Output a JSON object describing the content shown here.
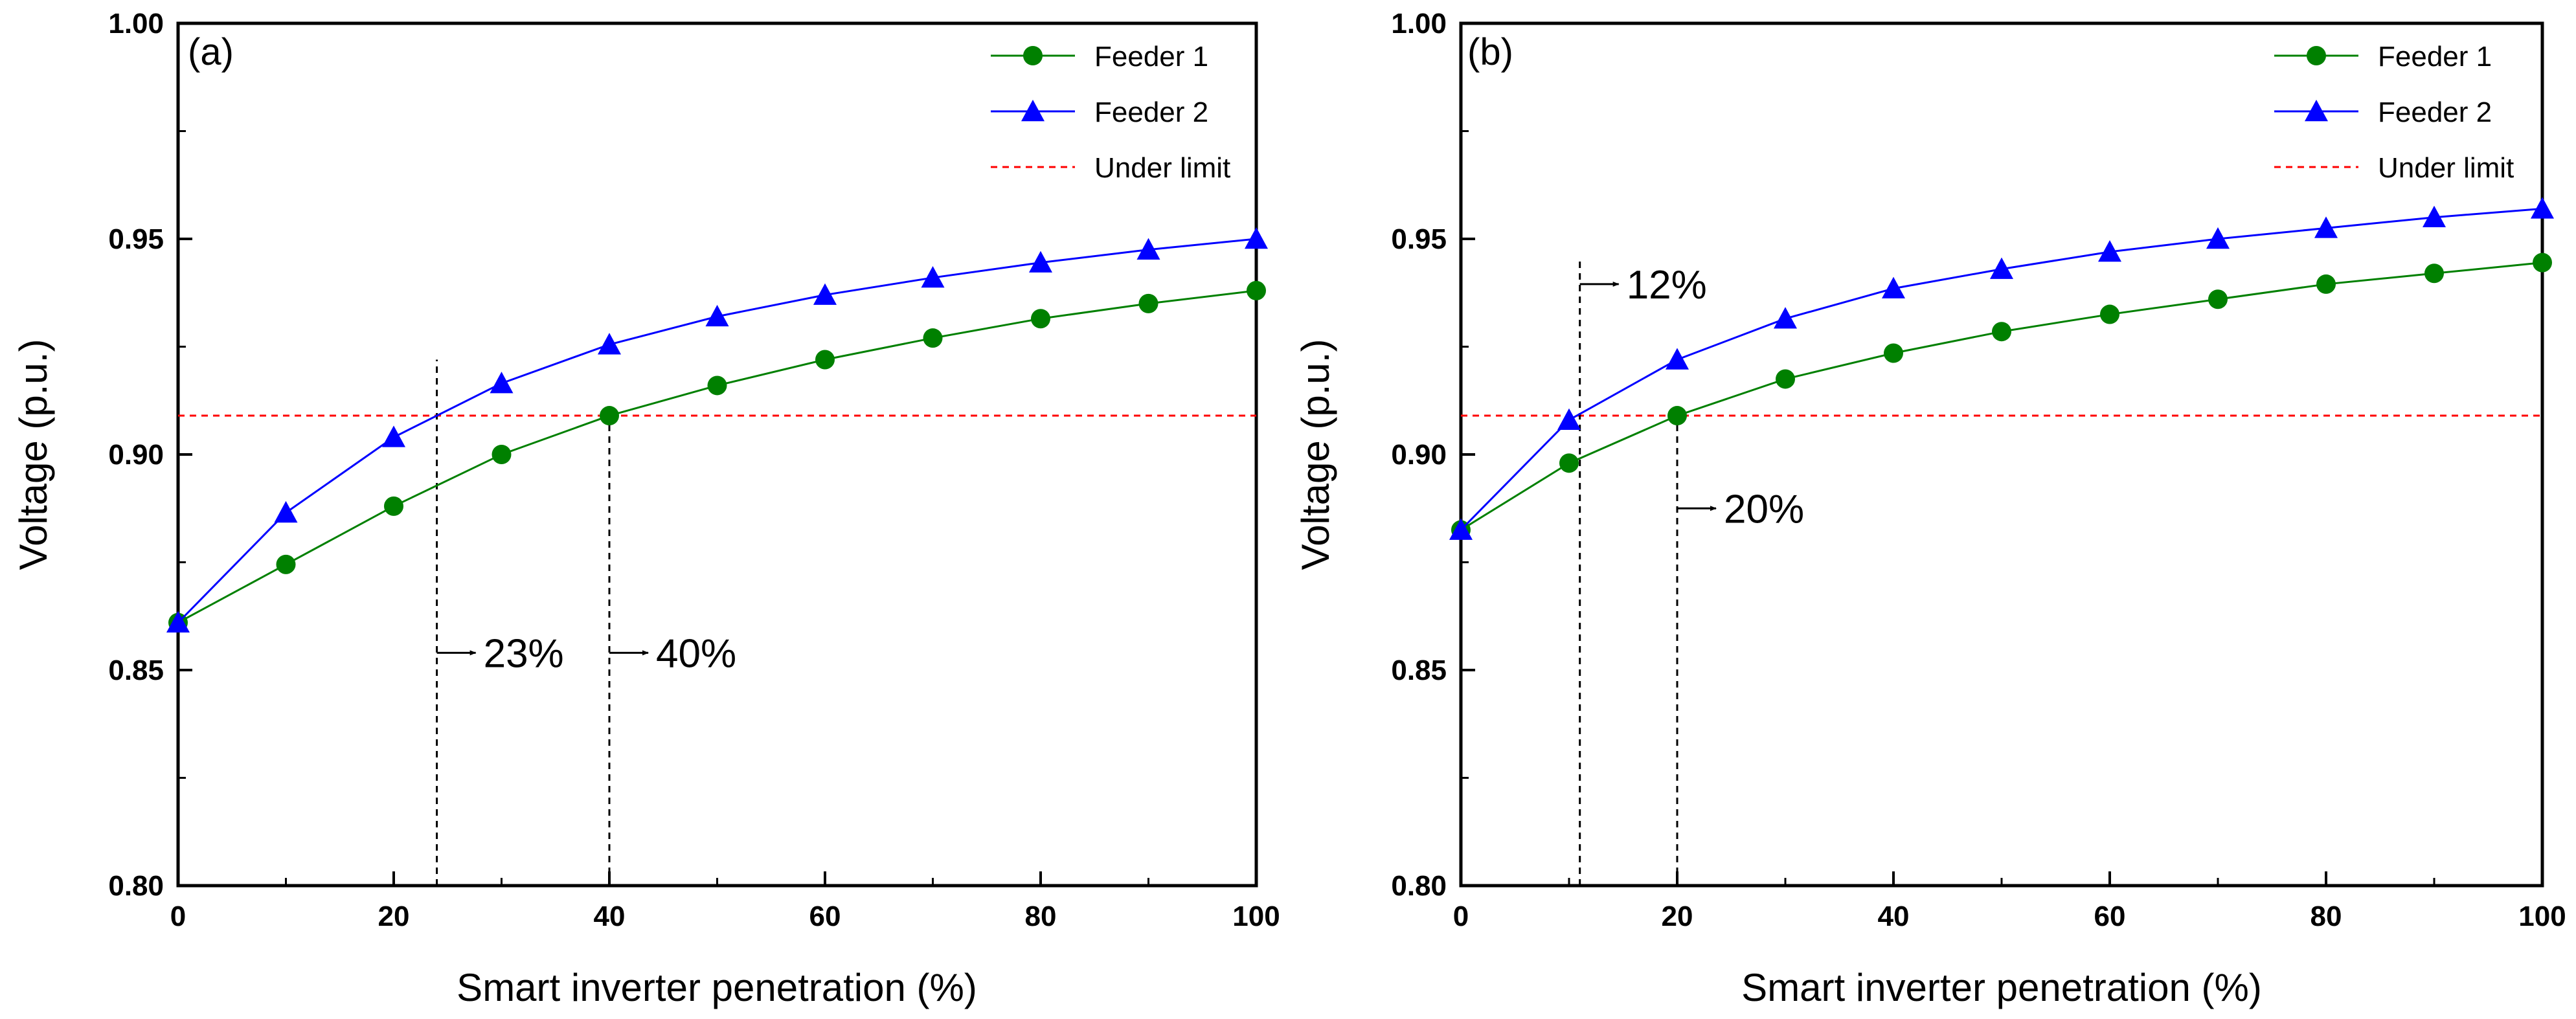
{
  "chart_data": [
    {
      "type": "line",
      "panel_label": "(a)",
      "xlabel": "Smart inverter penetration (%)",
      "ylabel": "Voltage (p.u.)",
      "xlim": [
        0,
        100
      ],
      "ylim": [
        0.8,
        1.0
      ],
      "x_ticks": [
        "0",
        "20",
        "40",
        "60",
        "80",
        "100"
      ],
      "y_ticks": [
        "0.80",
        "0.85",
        "0.90",
        "0.95",
        "1.00"
      ],
      "x": [
        0,
        10,
        20,
        30,
        40,
        50,
        60,
        70,
        80,
        90,
        100
      ],
      "series": [
        {
          "name": "Feeder 1",
          "color": "#008000",
          "marker": "circle",
          "values": [
            0.861,
            0.8745,
            0.888,
            0.9,
            0.909,
            0.916,
            0.922,
            0.927,
            0.9315,
            0.935,
            0.938
          ]
        },
        {
          "name": "Feeder 2",
          "color": "#0000ff",
          "marker": "triangle",
          "values": [
            0.861,
            0.8865,
            0.904,
            0.9165,
            0.9255,
            0.932,
            0.937,
            0.941,
            0.9445,
            0.9475,
            0.95
          ]
        }
      ],
      "reference_line": {
        "name": "Under limit",
        "y": 0.909,
        "color": "#ff0000"
      },
      "annotations": [
        {
          "text": "23%",
          "x": 24,
          "line_top": 0.922
        },
        {
          "text": "40%",
          "x": 40,
          "line_top": 0.909
        }
      ],
      "legend_placement": "top-right",
      "grid": false
    },
    {
      "type": "line",
      "panel_label": "(b)",
      "xlabel": "Smart inverter penetration (%)",
      "ylabel": "Voltage (p.u.)",
      "xlim": [
        0,
        100
      ],
      "ylim": [
        0.8,
        1.0
      ],
      "x_ticks": [
        "0",
        "20",
        "40",
        "60",
        "80",
        "100"
      ],
      "y_ticks": [
        "0.80",
        "0.85",
        "0.90",
        "0.95",
        "1.00"
      ],
      "x": [
        0,
        10,
        20,
        30,
        40,
        50,
        60,
        70,
        80,
        90,
        100
      ],
      "series": [
        {
          "name": "Feeder 1",
          "color": "#008000",
          "marker": "circle",
          "values": [
            0.8825,
            0.898,
            0.909,
            0.9175,
            0.9235,
            0.9285,
            0.9325,
            0.936,
            0.9395,
            0.942,
            0.9445
          ]
        },
        {
          "name": "Feeder 2",
          "color": "#0000ff",
          "marker": "triangle",
          "values": [
            0.8825,
            0.908,
            0.922,
            0.9315,
            0.9385,
            0.943,
            0.947,
            0.95,
            0.9525,
            0.955,
            0.957
          ]
        }
      ],
      "reference_line": {
        "name": "Under limit",
        "y": 0.909,
        "color": "#ff0000"
      },
      "annotations": [
        {
          "text": "12%",
          "x": 11,
          "line_top": 0.9455,
          "label_y": 0.9395
        },
        {
          "text": "20%",
          "x": 20,
          "line_top": 0.909,
          "label_y": 0.8875
        }
      ],
      "legend_placement": "top-right",
      "grid": false
    }
  ]
}
